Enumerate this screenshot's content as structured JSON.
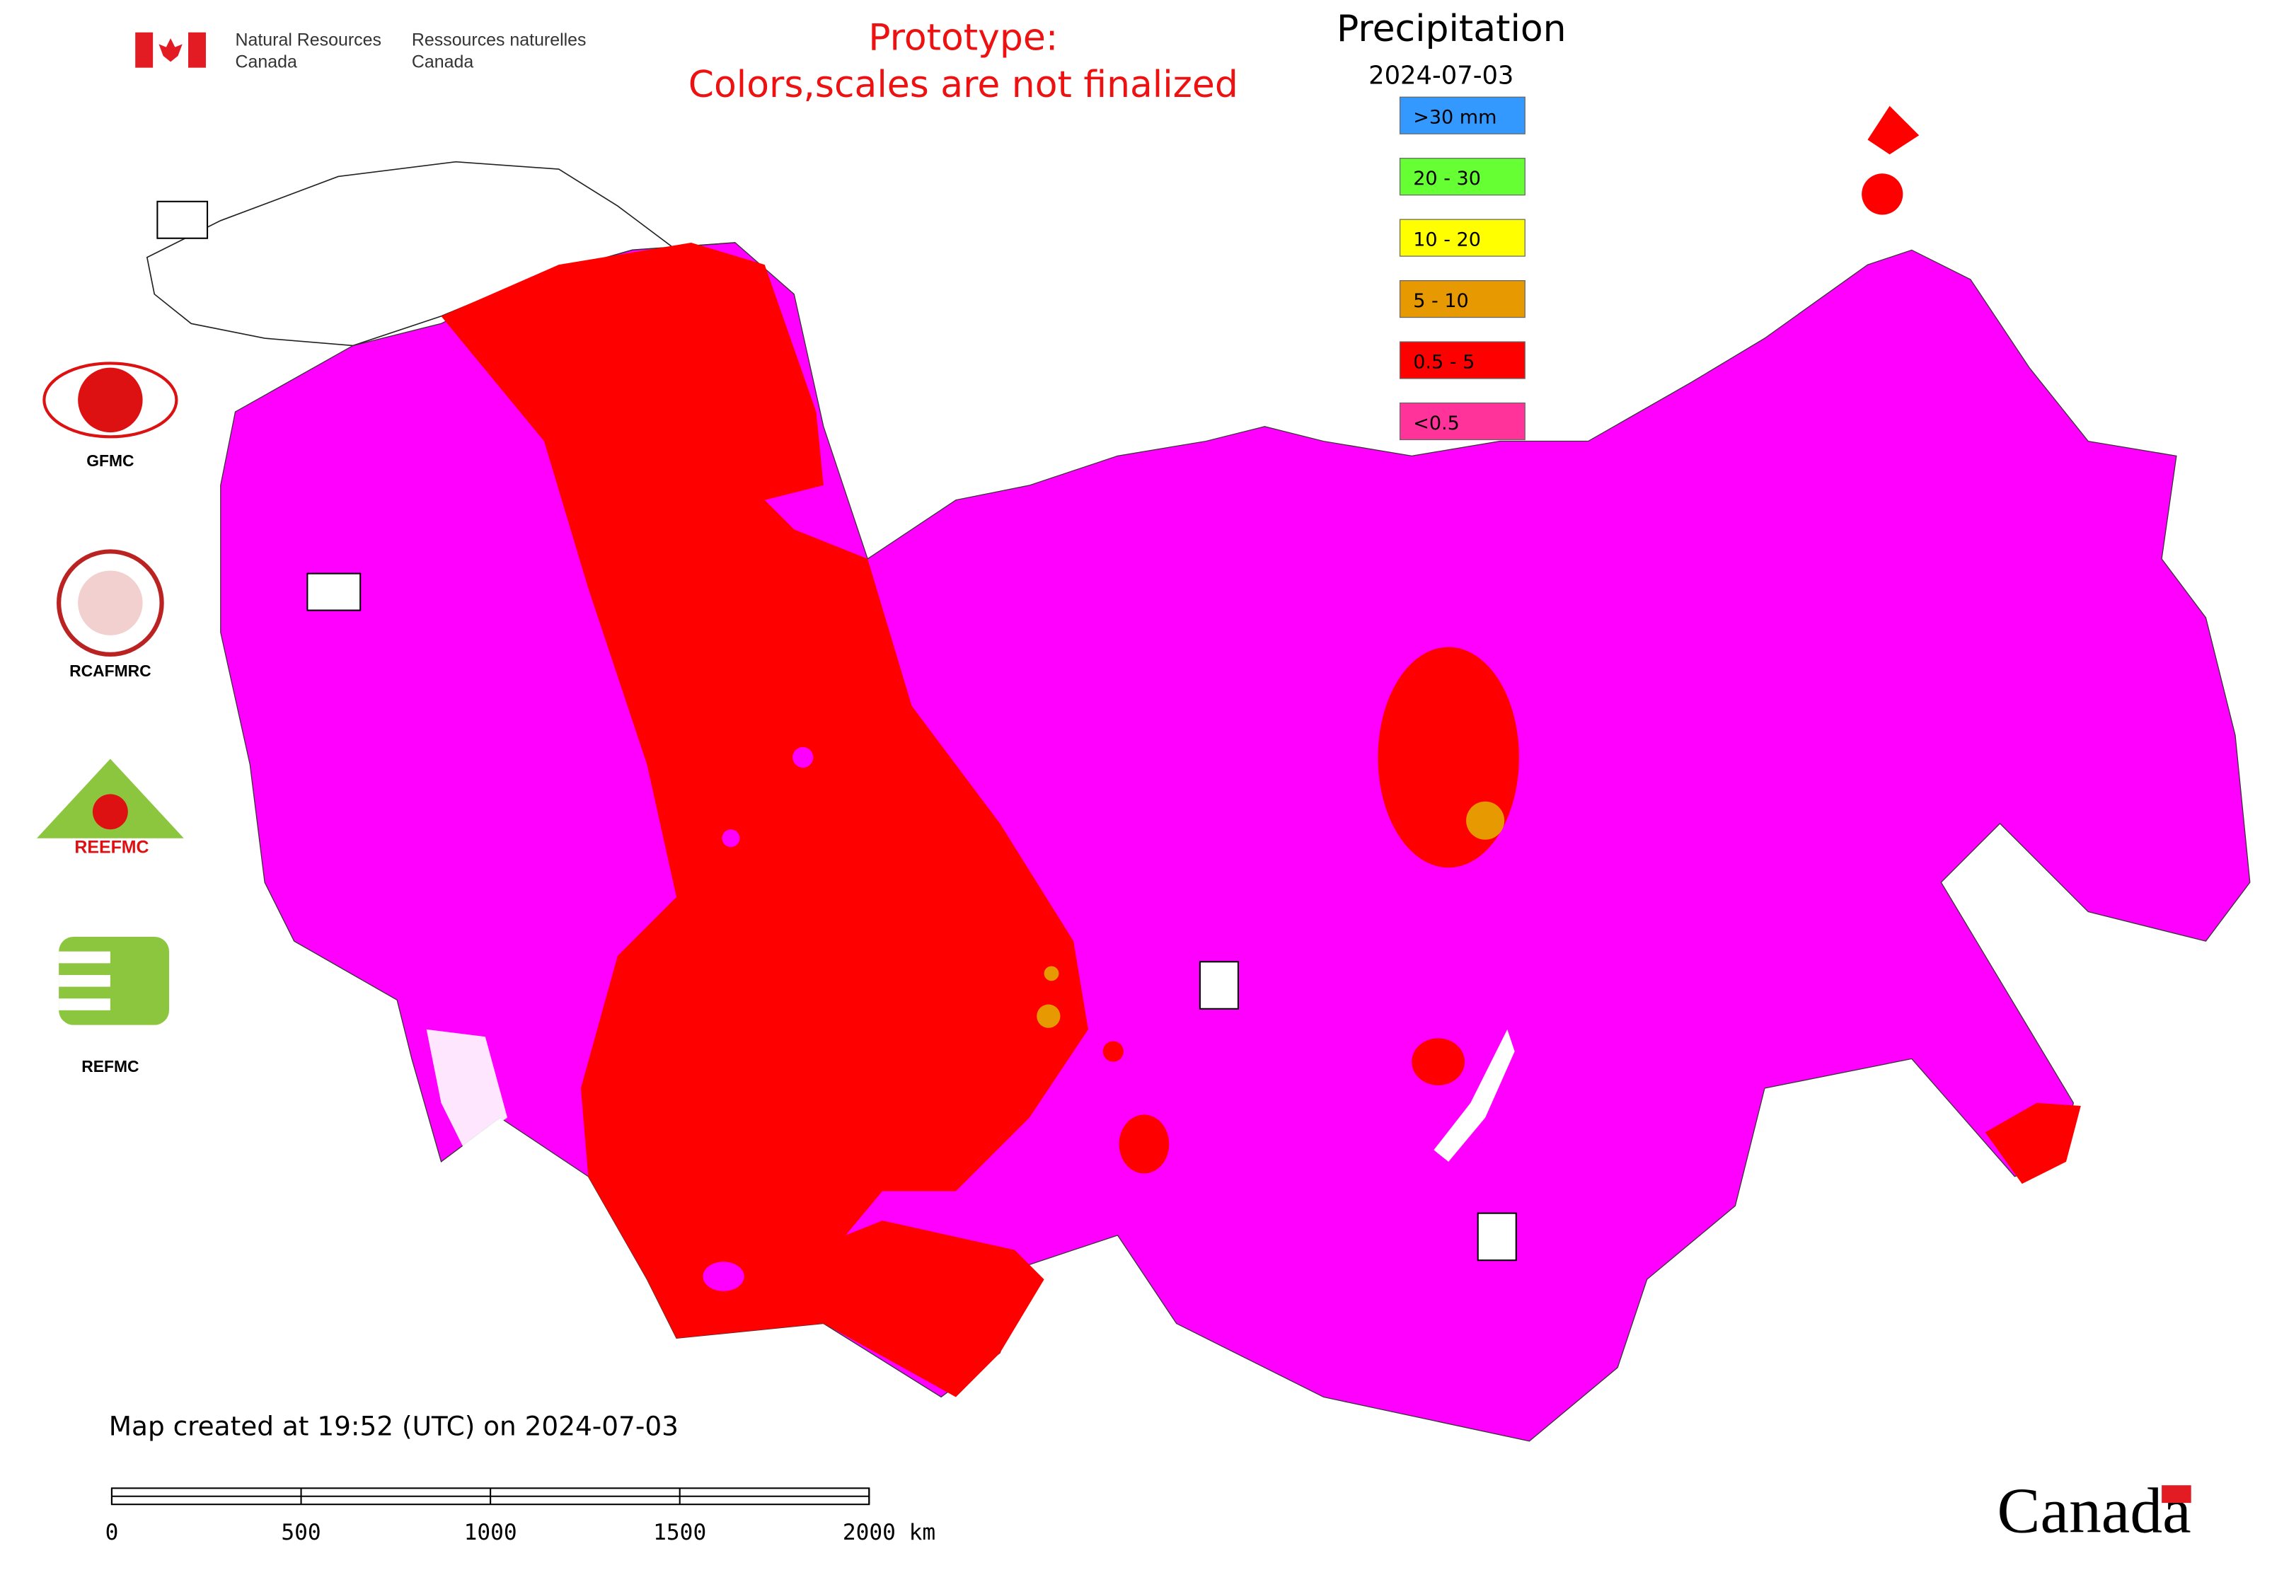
{
  "header": {
    "org_en": [
      "Natural Resources",
      "Canada"
    ],
    "org_fr": [
      "Ressources naturelles",
      "Canada"
    ],
    "notice": [
      "Prototype:",
      "Colors,scales are not finalized"
    ]
  },
  "legend": {
    "title": "Precipitation",
    "date": "2024-07-03",
    "items": [
      {
        "label": ">30 mm",
        "color": "#3399ff"
      },
      {
        "label": "20 - 30",
        "color": "#66ff33"
      },
      {
        "label": "10 - 20",
        "color": "#ffff00"
      },
      {
        "label": "5 - 10",
        "color": "#e69900"
      },
      {
        "label": "0.5 - 5",
        "color": "#ff0000"
      },
      {
        "label": "<0.5",
        "color": "#ff3399"
      }
    ]
  },
  "logos": [
    "GFMC",
    "RCAFMRC",
    "REEFMC",
    "REFMC"
  ],
  "footer": {
    "created": "Map created at 19:52 (UTC) on 2024-07-03",
    "scale": {
      "ticks": [
        0,
        500,
        1000,
        1500,
        {
          "value": 2000,
          "label": "2000 km"
        }
      ]
    },
    "wordmark": "Canada"
  }
}
